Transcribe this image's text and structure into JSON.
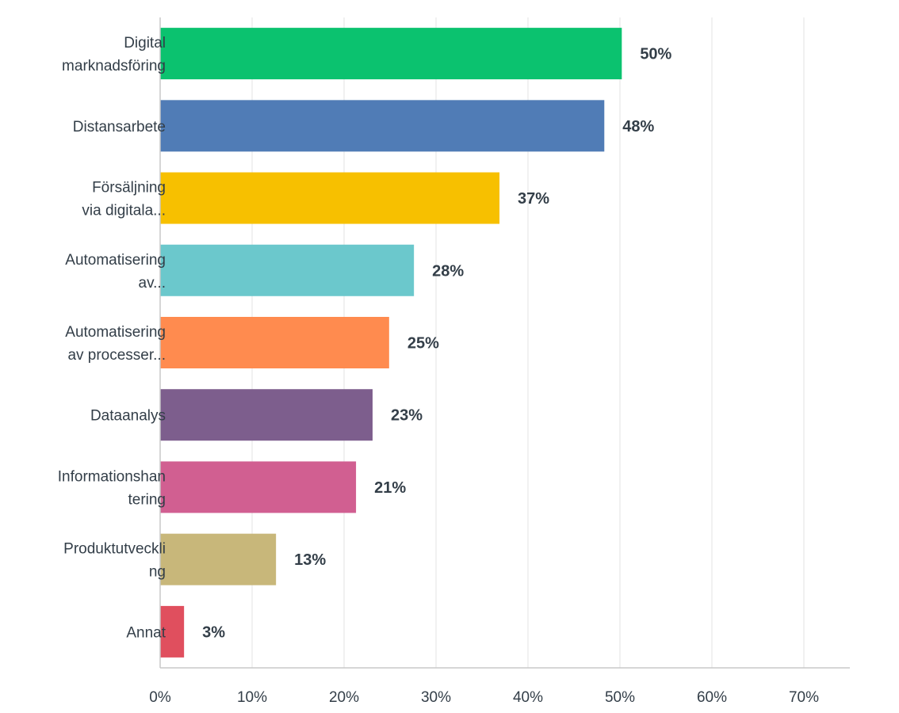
{
  "chart_data": {
    "type": "bar",
    "orientation": "horizontal",
    "categories": [
      [
        "Digital",
        "marknadsföring"
      ],
      [
        "Distansarbete"
      ],
      [
        "Försäljning",
        "via digitala..."
      ],
      [
        "Automatisering",
        "av..."
      ],
      [
        "Automatisering",
        "av processer..."
      ],
      [
        "Dataanalys"
      ],
      [
        "Informationshan",
        "tering"
      ],
      [
        "Produktutveckli",
        "ng"
      ],
      [
        "Annat"
      ]
    ],
    "values": [
      50.2,
      48.3,
      36.9,
      27.6,
      24.9,
      23.1,
      21.3,
      12.6,
      2.6
    ],
    "value_labels": [
      "50%",
      "48%",
      "37%",
      "28%",
      "25%",
      "23%",
      "21%",
      "13%",
      "3%"
    ],
    "colors": [
      "#0bc26f",
      "#507cb6",
      "#f7c000",
      "#6bc8cc",
      "#ff8b4f",
      "#7d5e8d",
      "#d15f91",
      "#c8b77a",
      "#e04f5e"
    ],
    "xlim": [
      0,
      75
    ],
    "xticks": [
      0,
      10,
      20,
      30,
      40,
      50,
      60,
      70
    ],
    "xtick_labels": [
      "0%",
      "10%",
      "20%",
      "30%",
      "40%",
      "50%",
      "60%",
      "70%"
    ],
    "grid": true,
    "title": "",
    "xlabel": "",
    "ylabel": ""
  }
}
